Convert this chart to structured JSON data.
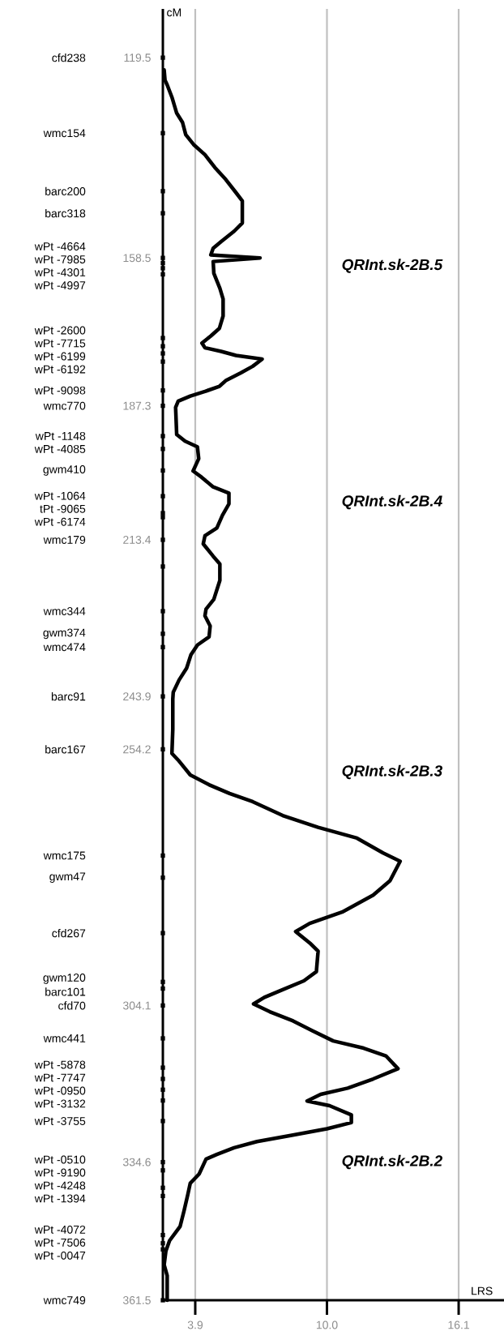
{
  "chart_data": {
    "type": "line",
    "xlabel": "LRS",
    "ylabel": "cM",
    "xlim": [
      2.4,
      18.2
    ],
    "ylim": [
      361.5,
      110
    ],
    "xticks": [
      3.9,
      {
        "value": 10,
        "label": "10.0"
      },
      16.1
    ],
    "yticks": [
      119.5,
      158.5,
      187.3,
      213.4,
      243.9,
      254.2,
      304.1,
      334.6,
      361.5
    ],
    "grid": "x",
    "series": [
      {
        "color": "#000000",
        "x": [
          2.46,
          2.5,
          2.6,
          2.82,
          3.04,
          3.31,
          3.46,
          3.82,
          4.35,
          4.81,
          5.31,
          5.79,
          6.08,
          6.08,
          5.7,
          5.1,
          4.73,
          4.62,
          6.9,
          4.73,
          4.76,
          5.04,
          5.19,
          5.19,
          5.02,
          4.62,
          4.21,
          4.35,
          5.1,
          5.79,
          7.0,
          6.56,
          6.01,
          5.31,
          5.02,
          4.35,
          3.67,
          3.11,
          2.99,
          3.04,
          3.43,
          4.0,
          4.06,
          3.8,
          4.19,
          4.73,
          5.46,
          5.46,
          5.16,
          4.9,
          4.35,
          4.27,
          4.73,
          5.04,
          5.04,
          4.76,
          4.4,
          4.35,
          4.59,
          4.54,
          4.0,
          3.7,
          3.5,
          3.15,
          2.88,
          2.86,
          2.86,
          2.82,
          3.11,
          3.67,
          4.54,
          5.49,
          6.56,
          7.95,
          9.59,
          11.39,
          12.6,
          13.39,
          12.92,
          12.14,
          10.7,
          9.2,
          8.55,
          9.2,
          9.59,
          9.51,
          8.93,
          7.95,
          7.1,
          6.6,
          7.35,
          8.43,
          9.32,
          10.29,
          11.7,
          12.73,
          13.29,
          12.14,
          10.96,
          9.71,
          9.08,
          10.12,
          11.13,
          11.13,
          10.0,
          8.32,
          6.76,
          5.7,
          4.9,
          4.4,
          4.08,
          3.67,
          3.55,
          3.38,
          3.2,
          2.71,
          2.54,
          2.46,
          2.6,
          2.6
        ],
        "values": [
          121.9,
          123.9,
          124.8,
          127.2,
          130.3,
          132.1,
          134.5,
          136.4,
          138.4,
          140.9,
          143.2,
          145.8,
          147.4,
          151.7,
          153.3,
          155.3,
          156.6,
          157.9,
          158.5,
          159.2,
          161.5,
          164.4,
          166.5,
          169.8,
          172.2,
          173.7,
          175.1,
          176.0,
          176.7,
          177.5,
          178.2,
          179.6,
          180.9,
          182.4,
          183.5,
          184.5,
          185.4,
          186.4,
          187.6,
          192.9,
          194.2,
          195.3,
          197.6,
          200.0,
          201.2,
          203.1,
          204.3,
          206.4,
          208.6,
          211.1,
          212.6,
          214.2,
          216.6,
          218.1,
          221.3,
          225.0,
          226.9,
          228.2,
          230.2,
          232.3,
          233.9,
          235.8,
          238.4,
          240.7,
          243.1,
          244.4,
          250.3,
          255.0,
          256.3,
          259.2,
          261.1,
          262.8,
          264.4,
          267.1,
          269.4,
          271.5,
          274.4,
          276.0,
          279.8,
          282.6,
          285.9,
          288.1,
          289.7,
          291.9,
          293.5,
          297.5,
          299.3,
          301.0,
          302.5,
          303.8,
          305.3,
          307.1,
          309.0,
          311.0,
          312.4,
          313.9,
          316.4,
          318.4,
          320.2,
          321.4,
          322.7,
          323.6,
          325.4,
          326.9,
          328.1,
          329.4,
          330.6,
          331.8,
          333.1,
          334.0,
          336.9,
          338.7,
          341.0,
          344.1,
          347.1,
          349.9,
          351.9,
          354.6,
          356.7,
          361.5
        ]
      },
      {
        "type": "scatter",
        "color": "#000000",
        "marker": "square",
        "x": [
          2.4,
          2.4,
          2.4,
          2.4,
          2.4,
          2.4,
          2.4,
          2.4,
          2.4,
          2.4,
          2.4,
          2.4,
          2.4,
          2.4,
          2.4,
          2.4,
          2.4,
          2.4,
          2.4,
          2.4,
          2.4,
          2.4,
          2.4,
          2.4,
          2.4,
          2.4,
          2.4,
          2.4,
          2.4,
          2.4,
          2.4,
          2.4,
          2.4,
          2.4,
          2.4,
          2.4,
          2.4,
          2.4,
          2.4,
          2.4,
          2.4,
          2.4,
          2.4,
          2.4,
          2.4,
          2.4
        ],
        "values": [
          119.5,
          134.2,
          145.5,
          149.8,
          158.5,
          159.5,
          160.5,
          161.7,
          174.1,
          175.7,
          177.1,
          178.7,
          184.3,
          187.3,
          193.2,
          195.7,
          199.9,
          204.9,
          208.2,
          209.0,
          213.4,
          227.3,
          231.7,
          234.3,
          243.9,
          254.2,
          274.9,
          279.2,
          290.0,
          299.5,
          300.8,
          304.1,
          310.5,
          316.2,
          318.4,
          320.5,
          322.6,
          326.6,
          334.6,
          336.2,
          339.6,
          341.2,
          348.8,
          350.4,
          351.6,
          361.5
        ]
      },
      {
        "type": "scatter",
        "color": "#000000",
        "marker": "square",
        "x": [
          2.4
        ],
        "values": [
          218.6
        ]
      }
    ],
    "annotations": [
      "QRInt.sk-2B.5",
      "QRInt.sk-2B.4",
      "QRInt.sk-2B.3",
      "QRInt.sk-2B.2",
      "cfd238",
      "wmc154",
      "barc200",
      "barc318",
      "wPt -4664",
      "wPt -7985",
      "wPt -4301",
      "wPt -4997",
      "wPt -2600",
      "wPt -7715",
      "wPt -6199",
      "wPt -6192",
      "wPt -9098",
      "wmc770",
      "wPt -1148",
      "wPt -4085",
      "gwm410",
      "wPt -1064",
      "tPt -9065",
      "wPt -6174",
      "wmc179",
      "wmc344",
      "gwm374",
      "wmc474",
      "barc91",
      "barc167",
      "wmc175",
      "gwm47",
      "cfd267",
      "gwm120",
      "barc101",
      "cfd70",
      "wmc441",
      "wPt -5878",
      "wPt -7747",
      "wPt -0950",
      "wPt -3132",
      "wPt -3755",
      "wPt -0510",
      "wPt -9190",
      "wPt -4248",
      "wPt -1394",
      "wPt -4072",
      "wPt -7506",
      "wPt -0047",
      "wmc749"
    ]
  }
}
